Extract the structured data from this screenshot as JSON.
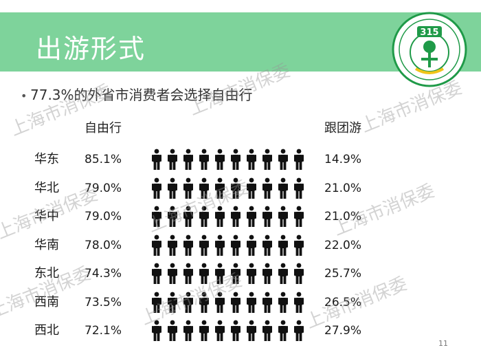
{
  "slide": {
    "title": "出游形式",
    "bullet": "77.3%的外省市消费者会选择自由行",
    "col_left": "自由行",
    "col_right": "跟团游",
    "page_number": "11",
    "watermark": "上海市消保委",
    "logo_number": "315",
    "accent_color": "#7ed39b"
  },
  "rows": [
    {
      "region": "华东",
      "self": "85.1%",
      "group": "14.9%"
    },
    {
      "region": "华北",
      "self": "79.0%",
      "group": "21.0%"
    },
    {
      "region": "华中",
      "self": "79.0%",
      "group": "21.0%"
    },
    {
      "region": "华南",
      "self": "78.0%",
      "group": "22.0%"
    },
    {
      "region": "东北",
      "self": "74.3%",
      "group": "25.7%"
    },
    {
      "region": "西南",
      "self": "73.5%",
      "group": "26.5%"
    },
    {
      "region": "西北",
      "self": "72.1%",
      "group": "27.9%"
    }
  ]
}
